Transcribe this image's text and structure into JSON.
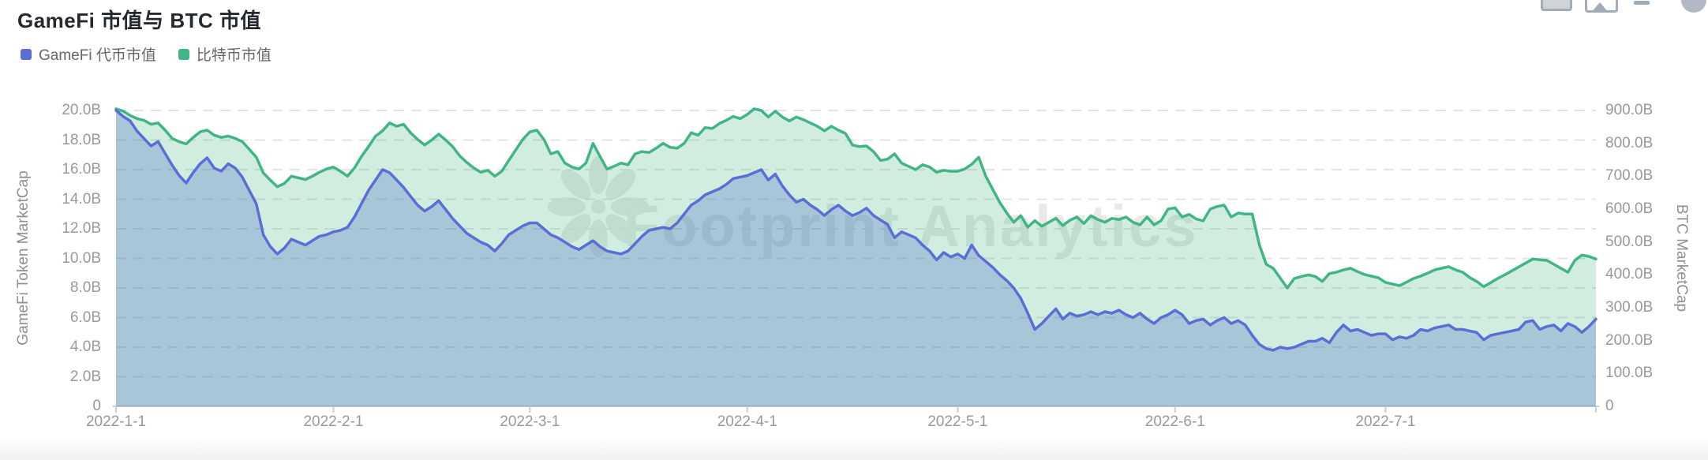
{
  "header": {
    "title": "GameFi 市值与 BTC 市值"
  },
  "toolbar_icons": [
    "table-view-icon",
    "download-image-icon",
    "collapse-icon",
    "avatar-icon"
  ],
  "legend": [
    {
      "label": "GameFi 代币市值",
      "color": "#5a6fd6"
    },
    {
      "label": "比特币市值",
      "color": "#41b583"
    }
  ],
  "watermark": {
    "text": "Footprint Analytics"
  },
  "chart_data": {
    "type": "area",
    "title": "GameFi 市值与 BTC 市值",
    "x_start_date": "2022-01-01",
    "x_end_date": "2022-07-31",
    "x_ticks": [
      {
        "label": "2022-1-1",
        "day": 0
      },
      {
        "label": "2022-2-1",
        "day": 31
      },
      {
        "label": "2022-3-1",
        "day": 59
      },
      {
        "label": "2022-4-1",
        "day": 90
      },
      {
        "label": "2022-5-1",
        "day": 120
      },
      {
        "label": "2022-6-1",
        "day": 151
      },
      {
        "label": "2022-7-1",
        "day": 181
      }
    ],
    "left_axis": {
      "label": "GameFi Token MarketCap",
      "unit": "B USD",
      "min": 0,
      "max": 20,
      "step": 2,
      "tick_labels": [
        "0",
        "2.0B",
        "4.0B",
        "6.0B",
        "8.0B",
        "10.0B",
        "12.0B",
        "14.0B",
        "16.0B",
        "18.0B",
        "20.0B"
      ]
    },
    "right_axis": {
      "label": "BTC MarketCap",
      "unit": "B USD",
      "min": 0,
      "max": 900,
      "step": 100,
      "tick_labels": [
        "0",
        "100.0B",
        "200.0B",
        "300.0B",
        "400.0B",
        "500.0B",
        "600.0B",
        "700.0B",
        "800.0B",
        "900.0B"
      ]
    },
    "grid": {
      "horizontal_dashed": true
    },
    "legend_position": "top-left",
    "series": [
      {
        "name": "GameFi 代币市值",
        "axis": "left",
        "color": "#5a6fd6",
        "fill": "rgba(84,112,198,0.32)",
        "values_unit": "billions_usd",
        "values": [
          20.0,
          19.6,
          19.3,
          18.6,
          18.1,
          17.6,
          17.9,
          17.1,
          16.3,
          15.6,
          15.1,
          15.8,
          16.4,
          16.8,
          16.1,
          15.9,
          16.4,
          16.1,
          15.5,
          14.6,
          13.7,
          11.6,
          10.8,
          10.3,
          10.7,
          11.3,
          11.1,
          10.9,
          11.2,
          11.5,
          11.6,
          11.8,
          11.9,
          12.1,
          12.8,
          13.7,
          14.6,
          15.3,
          16.0,
          15.8,
          15.3,
          14.8,
          14.2,
          13.6,
          13.2,
          13.5,
          13.9,
          13.3,
          12.7,
          12.2,
          11.7,
          11.4,
          11.1,
          10.9,
          10.5,
          11.0,
          11.6,
          11.9,
          12.2,
          12.4,
          12.4,
          12.0,
          11.6,
          11.4,
          11.1,
          10.8,
          10.6,
          10.9,
          11.2,
          10.8,
          10.5,
          10.4,
          10.3,
          10.5,
          11.0,
          11.5,
          11.9,
          12.0,
          12.1,
          12.0,
          12.4,
          13.0,
          13.6,
          13.9,
          14.3,
          14.5,
          14.7,
          15.0,
          15.4,
          15.5,
          15.6,
          15.8,
          16.0,
          15.3,
          15.7,
          14.9,
          14.3,
          13.8,
          14.0,
          13.6,
          13.3,
          12.9,
          13.3,
          13.6,
          13.2,
          12.9,
          13.1,
          13.4,
          12.9,
          12.6,
          12.3,
          11.4,
          11.8,
          11.6,
          11.4,
          10.9,
          10.5,
          9.9,
          10.4,
          10.1,
          10.3,
          10.0,
          10.9,
          10.2,
          9.8,
          9.4,
          8.9,
          8.5,
          8.0,
          7.3,
          6.3,
          5.2,
          5.6,
          6.1,
          6.6,
          5.9,
          6.3,
          6.1,
          6.2,
          6.4,
          6.2,
          6.4,
          6.3,
          6.5,
          6.2,
          6.0,
          6.3,
          5.9,
          5.6,
          6.0,
          6.2,
          6.5,
          6.2,
          5.6,
          5.8,
          5.9,
          5.5,
          5.8,
          6.0,
          5.6,
          5.8,
          5.5,
          4.8,
          4.2,
          3.9,
          3.8,
          4.0,
          3.9,
          4.0,
          4.2,
          4.4,
          4.4,
          4.6,
          4.3,
          5.0,
          5.5,
          5.1,
          5.2,
          5.0,
          4.8,
          4.9,
          4.9,
          4.5,
          4.7,
          4.6,
          4.8,
          5.2,
          5.1,
          5.3,
          5.4,
          5.5,
          5.2,
          5.2,
          5.1,
          5.0,
          4.5,
          4.8,
          4.9,
          5.0,
          5.1,
          5.2,
          5.7,
          5.8,
          5.2,
          5.4,
          5.5,
          5.1,
          5.6,
          5.4,
          5.0,
          5.4,
          5.9
        ]
      },
      {
        "name": "比特币市值",
        "axis": "right",
        "color": "#41b583",
        "fill": "rgba(63,178,127,0.24)",
        "values_unit": "billions_usd",
        "values": [
          905,
          898,
          885,
          875,
          870,
          858,
          862,
          840,
          815,
          805,
          798,
          818,
          835,
          840,
          825,
          818,
          822,
          815,
          805,
          782,
          758,
          710,
          688,
          668,
          678,
          700,
          695,
          690,
          700,
          712,
          722,
          728,
          715,
          700,
          725,
          760,
          790,
          822,
          838,
          862,
          852,
          858,
          832,
          812,
          795,
          810,
          828,
          810,
          790,
          762,
          742,
          725,
          712,
          718,
          700,
          715,
          748,
          780,
          812,
          835,
          840,
          812,
          768,
          775,
          740,
          728,
          722,
          740,
          800,
          760,
          722,
          730,
          740,
          735,
          768,
          775,
          772,
          785,
          800,
          788,
          785,
          800,
          832,
          825,
          848,
          845,
          860,
          870,
          882,
          875,
          888,
          905,
          900,
          880,
          898,
          880,
          868,
          880,
          872,
          862,
          852,
          838,
          852,
          840,
          830,
          795,
          790,
          792,
          775,
          748,
          752,
          768,
          740,
          730,
          720,
          735,
          728,
          712,
          718,
          715,
          715,
          722,
          736,
          758,
          700,
          660,
          620,
          588,
          560,
          580,
          545,
          565,
          548,
          560,
          572,
          550,
          566,
          576,
          556,
          580,
          568,
          560,
          572,
          568,
          576,
          560,
          552,
          576,
          552,
          565,
          600,
          604,
          576,
          584,
          570,
          564,
          600,
          608,
          612,
          576,
          588,
          585,
          585,
          492,
          432,
          420,
          390,
          360,
          389,
          395,
          400,
          395,
          380,
          404,
          408,
          415,
          420,
          410,
          401,
          396,
          391,
          377,
          372,
          367,
          378,
          389,
          396,
          405,
          415,
          420,
          425,
          415,
          408,
          392,
          380,
          364,
          376,
          389,
          400,
          412,
          424,
          436,
          448,
          446,
          444,
          432,
          420,
          408,
          444,
          460,
          456,
          448
        ]
      }
    ]
  }
}
